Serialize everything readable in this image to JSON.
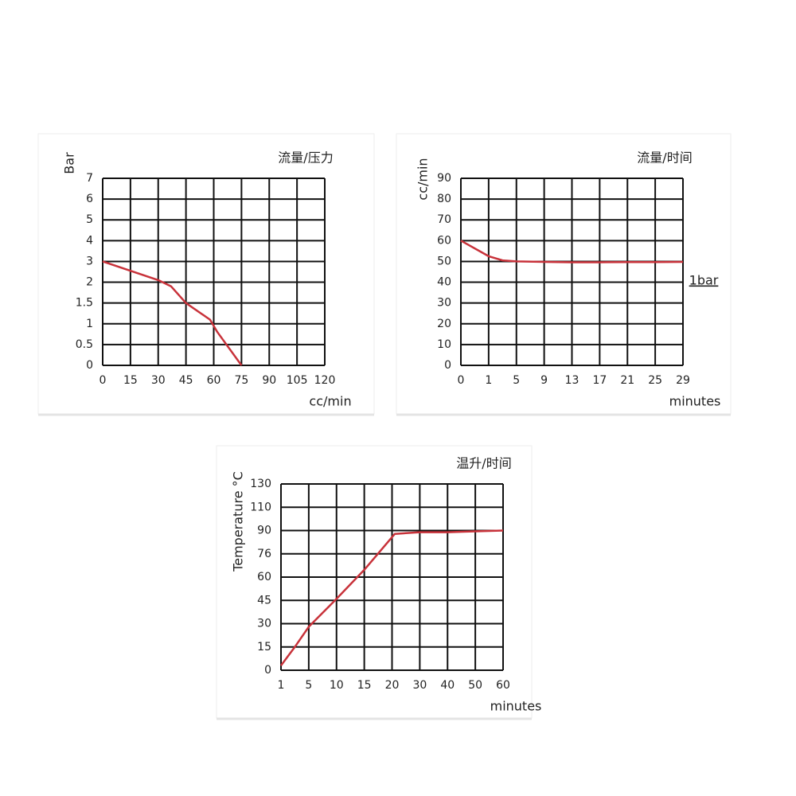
{
  "chart_data": [
    {
      "type": "line",
      "title": "流量/压力",
      "x_label": "cc/min",
      "y_label": "Bar",
      "x": [
        0,
        15,
        30,
        37,
        45,
        58,
        62,
        75
      ],
      "series": [
        {
          "color": "#c8323a",
          "values": [
            3,
            2.55,
            2.1,
            1.9,
            1.5,
            1.1,
            0.8,
            0
          ]
        }
      ],
      "xlim": [
        0,
        120
      ],
      "xticks": [
        0,
        15,
        30,
        45,
        60,
        75,
        90,
        105,
        120
      ],
      "ylim": [
        0,
        7
      ],
      "yticks": [
        0,
        0.5,
        1,
        1.5,
        2,
        3,
        4,
        5,
        6,
        7
      ],
      "grid": true
    },
    {
      "type": "line",
      "title": "流量/时间",
      "x_label": "minutes",
      "y_label": "cc/min",
      "annotation": "1bar",
      "x": [
        0,
        1,
        3,
        5,
        9,
        13,
        17,
        21,
        25,
        29
      ],
      "series": [
        {
          "color": "#c8323a",
          "values": [
            60,
            52.5,
            50.5,
            50,
            49.8,
            49.6,
            49.6,
            49.7,
            49.7,
            49.8
          ]
        }
      ],
      "xlim": [
        0,
        29
      ],
      "xticks": [
        0,
        1,
        5,
        9,
        13,
        17,
        21,
        25,
        29
      ],
      "ylim": [
        0,
        90
      ],
      "yticks": [
        0,
        10,
        20,
        30,
        40,
        50,
        60,
        70,
        80,
        90
      ],
      "grid": true
    },
    {
      "type": "line",
      "title": "温升/时间",
      "x_label": "minutes",
      "y_label": "Temperature °C",
      "x": [
        1,
        3,
        5,
        10,
        15,
        21,
        30,
        40,
        50,
        60
      ],
      "series": [
        {
          "color": "#c8323a",
          "values": [
            3,
            15,
            28,
            46,
            65,
            88,
            89,
            89,
            89.5,
            90
          ]
        }
      ],
      "xlim": [
        1,
        60
      ],
      "xticks": [
        1,
        5,
        10,
        15,
        20,
        30,
        40,
        50,
        60
      ],
      "ylim": [
        0,
        130
      ],
      "yticks": [
        0,
        15,
        30,
        45,
        60,
        76,
        90,
        110,
        130
      ],
      "grid": true
    }
  ]
}
